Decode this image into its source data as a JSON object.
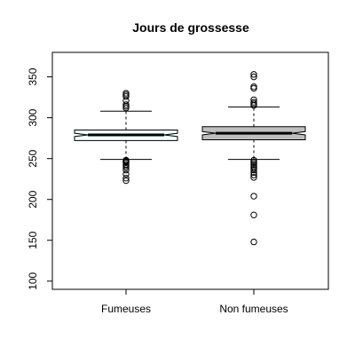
{
  "chart_data": {
    "type": "boxplot",
    "notched": true,
    "title": "Jours de grossesse",
    "xlabel": "",
    "ylabel": "",
    "ylim": [
      90,
      380
    ],
    "yticks": [
      100,
      150,
      200,
      250,
      300,
      350
    ],
    "categories": [
      "Fumeuses",
      "Non fumeuses"
    ],
    "series": [
      {
        "category": "Fumeuses",
        "fill": "#f0ffff",
        "whisker_low": 249,
        "q1": 272,
        "median": 279,
        "q3": 285,
        "whisker_high": 308,
        "notch_low": 277,
        "notch_high": 281,
        "outliers": [
          223,
          226,
          231,
          236,
          239,
          241,
          243,
          245,
          246,
          247,
          248,
          312,
          314,
          316,
          321,
          326,
          328,
          330
        ]
      },
      {
        "category": "Non fumeuses",
        "fill": "#bebebe",
        "whisker_low": 249,
        "q1": 273,
        "median": 281,
        "q3": 289,
        "whisker_high": 313,
        "notch_low": 279,
        "notch_high": 283,
        "outliers": [
          148,
          181,
          204,
          227,
          230,
          233,
          236,
          238,
          240,
          242,
          244,
          246,
          248,
          315,
          317,
          319,
          322,
          336,
          338,
          350,
          353
        ]
      }
    ]
  }
}
